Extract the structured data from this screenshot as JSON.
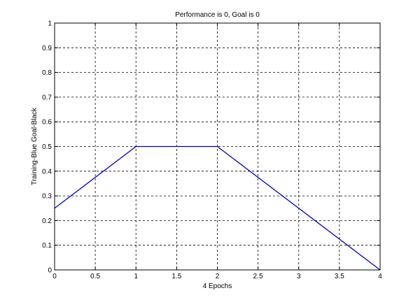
{
  "chart_data": {
    "type": "line",
    "title": "Performance is 0,  Goal is 0",
    "xlabel": "4 Epochs",
    "ylabel": "Training-Blue  Goal-Black",
    "xlim": [
      0,
      4
    ],
    "ylim": [
      0,
      1
    ],
    "x_ticks": [
      "0",
      "0.5",
      "1",
      "1.5",
      "2",
      "2.5",
      "3",
      "3.5",
      "4"
    ],
    "y_ticks": [
      "0",
      "0.1",
      "0.2",
      "0.3",
      "0.4",
      "0.5",
      "0.6",
      "0.7",
      "0.8",
      "0.9",
      "1"
    ],
    "grid": true,
    "grid_style": "dashed",
    "series": [
      {
        "color": "#0000cc",
        "x": [
          0,
          1,
          2,
          4
        ],
        "y": [
          0.25,
          0.5,
          0.5,
          0
        ]
      }
    ]
  }
}
